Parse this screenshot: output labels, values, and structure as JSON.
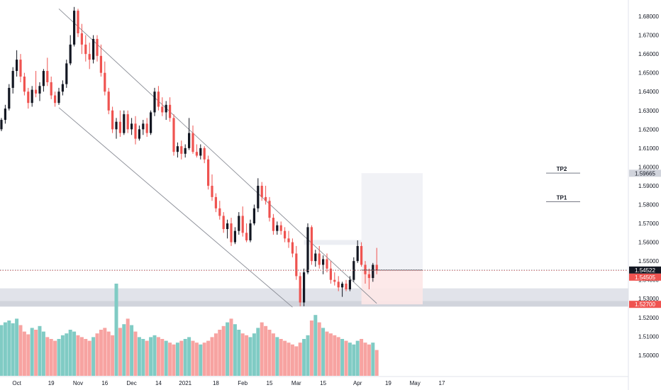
{
  "chart_data": {
    "type": "candlestick",
    "title": "",
    "xlabel": "",
    "ylabel": "",
    "ylim": [
      1.4928,
      1.6868
    ],
    "grid": false,
    "y_ticks": [
      "1.68000",
      "1.67000",
      "1.66000",
      "1.65000",
      "1.64000",
      "1.63000",
      "1.62000",
      "1.61000",
      "1.60000",
      "1.59000",
      "1.58000",
      "1.57000",
      "1.56000",
      "1.55000",
      "1.54000",
      "1.53000",
      "1.52000",
      "1.51000",
      "1.50000"
    ],
    "y_tick_values": [
      1.68,
      1.67,
      1.66,
      1.65,
      1.64,
      1.63,
      1.62,
      1.61,
      1.6,
      1.59,
      1.58,
      1.57,
      1.56,
      1.55,
      1.54,
      1.53,
      1.52,
      1.51,
      1.5
    ],
    "x_ticks": [
      {
        "label": "Oct",
        "index": 4
      },
      {
        "label": "19",
        "index": 13
      },
      {
        "label": "Nov",
        "index": 20
      },
      {
        "label": "16",
        "index": 27
      },
      {
        "label": "Dec",
        "index": 34
      },
      {
        "label": "14",
        "index": 41
      },
      {
        "label": "2021",
        "index": 48
      },
      {
        "label": "18",
        "index": 56
      },
      {
        "label": "Feb",
        "index": 63
      },
      {
        "label": "15",
        "index": 70
      },
      {
        "label": "Mar",
        "index": 77
      },
      {
        "label": "15",
        "index": 84
      },
      {
        "label": "Apr",
        "index": 93
      },
      {
        "label": "19",
        "index": 101
      },
      {
        "label": "May",
        "index": 108
      },
      {
        "label": "17",
        "index": 115
      }
    ],
    "price_labels": [
      {
        "text": "1.59665",
        "value": 1.59665,
        "kind": "gray"
      },
      {
        "text": "1.54522",
        "value": 1.54522,
        "kind": "dark"
      },
      {
        "text": "1.54505",
        "value": 1.54505,
        "kind": "red"
      },
      {
        "text": "1.52700",
        "value": 1.527,
        "kind": "red"
      }
    ],
    "annotations": {
      "tp_labels": [
        {
          "text": "TP2",
          "value": 1.5967
        },
        {
          "text": "TP1",
          "value": 1.5815
        }
      ],
      "zones": [
        {
          "from": 1.5288,
          "to": 1.5355,
          "color": "#e1e3ea"
        },
        {
          "from": 1.5258,
          "to": 1.5288,
          "color": "#d1d4dc"
        }
      ],
      "target_box": {
        "from_index": 94,
        "to_index": 110,
        "top": 1.5967,
        "mid": 1.5452,
        "bottom": 1.527
      },
      "range_box": {
        "from_index": 79,
        "to_index": 94,
        "top": 1.5612,
        "bottom": 1.5586
      },
      "channel_upper": [
        [
          15,
          1.684
        ],
        [
          98,
          1.5275
        ]
      ],
      "channel_lower": [
        [
          15,
          1.6315
        ],
        [
          76,
          1.5255
        ]
      ],
      "hlines": [
        {
          "value": 1.54522,
          "color": "#131722",
          "style": "solid"
        },
        {
          "value": 1.54505,
          "color": "#ef5350",
          "style": "dotted"
        },
        {
          "value": 1.5452,
          "color": "#787b86",
          "style": "dotted"
        }
      ]
    },
    "colors": {
      "up": "#26a69a",
      "down": "#ef5350",
      "up_wick": "#131722",
      "volume_up": "#80cbc4",
      "volume_down": "#f7a3a1"
    },
    "candles": [
      [
        1.62,
        1.626,
        1.619,
        1.625
      ],
      [
        1.625,
        1.633,
        1.623,
        1.631
      ],
      [
        1.631,
        1.644,
        1.63,
        1.642
      ],
      [
        1.642,
        1.653,
        1.639,
        1.651
      ],
      [
        1.651,
        1.662,
        1.648,
        1.657
      ],
      [
        1.657,
        1.66,
        1.645,
        1.648
      ],
      [
        1.648,
        1.65,
        1.638,
        1.64
      ],
      [
        1.64,
        1.642,
        1.631,
        1.634
      ],
      [
        1.634,
        1.643,
        1.632,
        1.641
      ],
      [
        1.641,
        1.651,
        1.637,
        1.639
      ],
      [
        1.639,
        1.645,
        1.635,
        1.643
      ],
      [
        1.643,
        1.652,
        1.64,
        1.651
      ],
      [
        1.651,
        1.658,
        1.643,
        1.645
      ],
      [
        1.645,
        1.648,
        1.636,
        1.638
      ],
      [
        1.638,
        1.64,
        1.632,
        1.634
      ],
      [
        1.634,
        1.642,
        1.633,
        1.64
      ],
      [
        1.64,
        1.646,
        1.638,
        1.644
      ],
      [
        1.644,
        1.657,
        1.642,
        1.655
      ],
      [
        1.655,
        1.67,
        1.654,
        1.665
      ],
      [
        1.665,
        1.685,
        1.664,
        1.683
      ],
      [
        1.683,
        1.684,
        1.669,
        1.671
      ],
      [
        1.671,
        1.676,
        1.66,
        1.665
      ],
      [
        1.665,
        1.67,
        1.656,
        1.66
      ],
      [
        1.66,
        1.666,
        1.652,
        1.657
      ],
      [
        1.657,
        1.67,
        1.655,
        1.668
      ],
      [
        1.668,
        1.67,
        1.656,
        1.659
      ],
      [
        1.659,
        1.665,
        1.648,
        1.65
      ],
      [
        1.65,
        1.656,
        1.638,
        1.64
      ],
      [
        1.64,
        1.642,
        1.628,
        1.63
      ],
      [
        1.63,
        1.632,
        1.618,
        1.62
      ],
      [
        1.62,
        1.626,
        1.615,
        1.624
      ],
      [
        1.624,
        1.63,
        1.616,
        1.618
      ],
      [
        1.618,
        1.63,
        1.617,
        1.628
      ],
      [
        1.628,
        1.63,
        1.618,
        1.62
      ],
      [
        1.62,
        1.626,
        1.617,
        1.623
      ],
      [
        1.623,
        1.627,
        1.612,
        1.615
      ],
      [
        1.615,
        1.622,
        1.614,
        1.62
      ],
      [
        1.62,
        1.625,
        1.617,
        1.623
      ],
      [
        1.623,
        1.626,
        1.616,
        1.618
      ],
      [
        1.618,
        1.63,
        1.617,
        1.629
      ],
      [
        1.629,
        1.642,
        1.627,
        1.64
      ],
      [
        1.64,
        1.643,
        1.63,
        1.632
      ],
      [
        1.632,
        1.637,
        1.627,
        1.629
      ],
      [
        1.629,
        1.635,
        1.625,
        1.633
      ],
      [
        1.633,
        1.637,
        1.624,
        1.626
      ],
      [
        1.626,
        1.628,
        1.606,
        1.608
      ],
      [
        1.608,
        1.613,
        1.605,
        1.611
      ],
      [
        1.611,
        1.614,
        1.604,
        1.607
      ],
      [
        1.607,
        1.612,
        1.605,
        1.61
      ],
      [
        1.61,
        1.626,
        1.609,
        1.618
      ],
      [
        1.618,
        1.622,
        1.607,
        1.608
      ],
      [
        1.608,
        1.612,
        1.605,
        1.606
      ],
      [
        1.606,
        1.612,
        1.604,
        1.61
      ],
      [
        1.61,
        1.611,
        1.602,
        1.604
      ],
      [
        1.604,
        1.606,
        1.588,
        1.59
      ],
      [
        1.59,
        1.596,
        1.582,
        1.584
      ],
      [
        1.584,
        1.586,
        1.576,
        1.578
      ],
      [
        1.578,
        1.582,
        1.572,
        1.574
      ],
      [
        1.574,
        1.576,
        1.565,
        1.567
      ],
      [
        1.567,
        1.572,
        1.562,
        1.57
      ],
      [
        1.57,
        1.573,
        1.558,
        1.56
      ],
      [
        1.56,
        1.568,
        1.559,
        1.566
      ],
      [
        1.566,
        1.576,
        1.564,
        1.574
      ],
      [
        1.574,
        1.579,
        1.563,
        1.565
      ],
      [
        1.565,
        1.57,
        1.56,
        1.561
      ],
      [
        1.561,
        1.572,
        1.56,
        1.57
      ],
      [
        1.57,
        1.58,
        1.569,
        1.578
      ],
      [
        1.578,
        1.594,
        1.576,
        1.59
      ],
      [
        1.59,
        1.592,
        1.582,
        1.584
      ],
      [
        1.584,
        1.59,
        1.58,
        1.582
      ],
      [
        1.582,
        1.584,
        1.571,
        1.573
      ],
      [
        1.573,
        1.575,
        1.564,
        1.566
      ],
      [
        1.566,
        1.571,
        1.564,
        1.569
      ],
      [
        1.569,
        1.571,
        1.564,
        1.566
      ],
      [
        1.566,
        1.568,
        1.56,
        1.562
      ],
      [
        1.562,
        1.566,
        1.557,
        1.56
      ],
      [
        1.56,
        1.562,
        1.552,
        1.554
      ],
      [
        1.554,
        1.558,
        1.54,
        1.542
      ],
      [
        1.542,
        1.544,
        1.526,
        1.528
      ],
      [
        1.528,
        1.546,
        1.526,
        1.544
      ],
      [
        1.544,
        1.57,
        1.543,
        1.568
      ],
      [
        1.568,
        1.569,
        1.548,
        1.55
      ],
      [
        1.55,
        1.556,
        1.547,
        1.554
      ],
      [
        1.554,
        1.558,
        1.546,
        1.548
      ],
      [
        1.548,
        1.553,
        1.543,
        1.551
      ],
      [
        1.551,
        1.554,
        1.544,
        1.546
      ],
      [
        1.546,
        1.55,
        1.538,
        1.54
      ],
      [
        1.54,
        1.544,
        1.537,
        1.539
      ],
      [
        1.539,
        1.542,
        1.534,
        1.536
      ],
      [
        1.536,
        1.539,
        1.531,
        1.538
      ],
      [
        1.538,
        1.54,
        1.534,
        1.535
      ],
      [
        1.535,
        1.542,
        1.534,
        1.54
      ],
      [
        1.54,
        1.552,
        1.539,
        1.55
      ],
      [
        1.55,
        1.561,
        1.549,
        1.558
      ],
      [
        1.558,
        1.56,
        1.547,
        1.548
      ],
      [
        1.548,
        1.55,
        1.538,
        1.543
      ],
      [
        1.543,
        1.546,
        1.535,
        1.541
      ],
      [
        1.541,
        1.549,
        1.539,
        1.548
      ],
      [
        1.548,
        1.557,
        1.543,
        1.5452
      ]
    ],
    "volumes": [
      0.55,
      0.58,
      0.6,
      0.57,
      0.62,
      0.55,
      0.48,
      0.45,
      0.52,
      0.5,
      0.54,
      0.48,
      0.42,
      0.4,
      0.38,
      0.4,
      0.44,
      0.46,
      0.5,
      0.48,
      0.44,
      0.42,
      0.4,
      0.38,
      0.42,
      0.46,
      0.5,
      0.52,
      0.48,
      0.44,
      1.0,
      0.52,
      0.56,
      0.62,
      0.55,
      0.48,
      0.42,
      0.4,
      0.38,
      0.42,
      0.44,
      0.42,
      0.4,
      0.38,
      0.36,
      0.34,
      0.36,
      0.38,
      0.4,
      0.42,
      0.38,
      0.36,
      0.34,
      0.36,
      0.38,
      0.42,
      0.46,
      0.5,
      0.54,
      0.58,
      0.62,
      0.56,
      0.5,
      0.46,
      0.44,
      0.42,
      0.46,
      0.52,
      0.58,
      0.54,
      0.5,
      0.46,
      0.42,
      0.4,
      0.38,
      0.36,
      0.34,
      0.32,
      0.36,
      0.4,
      0.44,
      0.6,
      0.66,
      0.58,
      0.52,
      0.48,
      0.46,
      0.44,
      0.42,
      0.4,
      0.38,
      0.36,
      0.34,
      0.38,
      0.4,
      0.36,
      0.34,
      0.36,
      0.28
    ]
  }
}
